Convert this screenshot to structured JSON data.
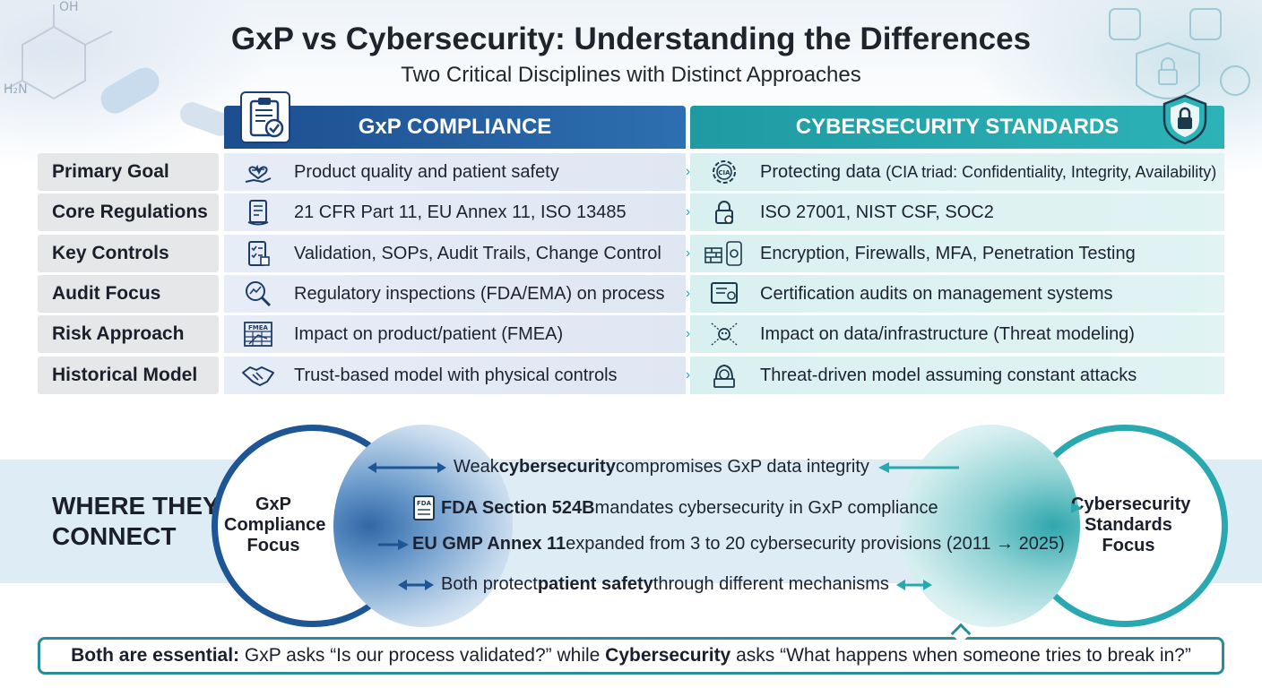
{
  "title": "GxP vs Cybersecurity: Understanding the Differences",
  "subtitle": "Two Critical Disciplines with Distinct Approaches",
  "columns": {
    "gxp": "GxP COMPLIANCE",
    "cyber": "CYBERSECURITY STANDARDS"
  },
  "rows": [
    {
      "label": "Primary Goal",
      "gxp": "Product quality and patient safety",
      "cyber_main": "Protecting data",
      "cyber_small": "(CIA triad: Confidentiality, Integrity, Availability)",
      "gxp_icon": "heart-hand-icon",
      "cyber_icon": "cia-gear-icon"
    },
    {
      "label": "Core Regulations",
      "gxp": "21 CFR Part 11, EU Annex 11, ISO 13485",
      "cyber_main": "ISO 27001, NIST CSF, SOC2",
      "cyber_small": "",
      "gxp_icon": "document-icon",
      "cyber_icon": "lock-icon"
    },
    {
      "label": "Key Controls",
      "gxp": "Validation, SOPs, Audit Trails, Change Control",
      "cyber_main": "Encryption, Firewalls, MFA, Penetration Testing",
      "cyber_small": "",
      "gxp_icon": "checklist-icon",
      "cyber_icon": "firewall-phone-icon"
    },
    {
      "label": "Audit Focus",
      "gxp": "Regulatory inspections (FDA/EMA) on process",
      "cyber_main": "Certification audits on management systems",
      "cyber_small": "",
      "gxp_icon": "magnifier-chart-icon",
      "cyber_icon": "certificate-icon"
    },
    {
      "label": "Risk Approach",
      "gxp": "Impact on product/patient (FMEA)",
      "cyber_main": "Impact on data/infrastructure (Threat modeling)",
      "cyber_small": "",
      "gxp_icon": "fmea-table-icon",
      "cyber_icon": "threat-skull-icon"
    },
    {
      "label": "Historical Model",
      "gxp": "Trust-based model with physical controls",
      "cyber_main": "Threat-driven model assuming constant attacks",
      "cyber_small": "",
      "gxp_icon": "handshake-icon",
      "cyber_icon": "hacker-icon"
    }
  ],
  "fmea_label": "FMEA",
  "cia_label": "CIA",
  "connect": {
    "heading_line1": "WHERE THEY",
    "heading_line2": "CONNECT",
    "gxp_circle": [
      "GxP",
      "Compliance",
      "Focus"
    ],
    "cyber_circle": [
      "Cybersecurity",
      "Standards",
      "Focus"
    ],
    "items": [
      {
        "pre": "Weak ",
        "bold": "cybersecurity",
        "post": " compromises GxP data integrity"
      },
      {
        "pre": "",
        "bold": "FDA Section 524B",
        "post": " mandates cybersecurity in GxP compliance",
        "badge": "FDA"
      },
      {
        "pre": "",
        "bold": "EU GMP Annex 11",
        "post": " expanded from 3 to 20 cybersecurity provisions (2011 → 2025)"
      },
      {
        "pre": "Both protect ",
        "bold": "patient safety",
        "post": " through different mechanisms"
      }
    ]
  },
  "callout": {
    "bold1": "Both are essential:",
    "mid": " GxP asks “Is our process validated?” while ",
    "bold2": "Cybersecurity",
    "end": " asks “What happens when someone tries to break in?”"
  },
  "colors": {
    "gxp": "#1c4e8f",
    "cyber": "#1f9aa3"
  }
}
